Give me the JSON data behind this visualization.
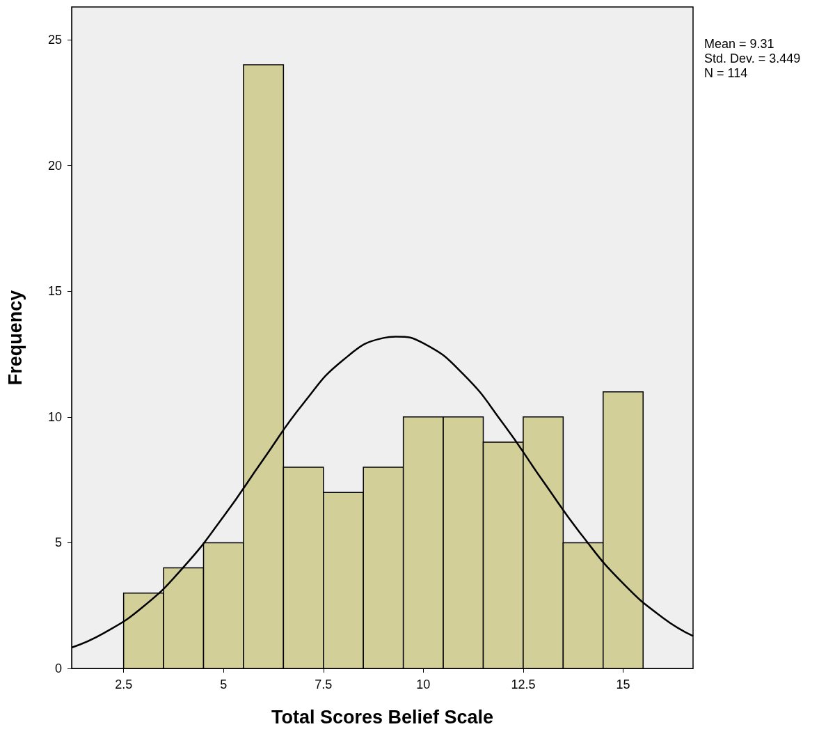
{
  "chart_data": {
    "type": "histogram",
    "xlabel": "Total Scores Belief Scale",
    "ylabel": "Frequency",
    "bins": [
      2.5,
      3.5,
      4.5,
      5.5,
      6.5,
      7.5,
      8.5,
      9.5,
      10.5,
      11.5,
      12.5,
      13.5,
      14.5,
      15.5
    ],
    "values": [
      3,
      4,
      5,
      24,
      8,
      7,
      8,
      10,
      10,
      9,
      10,
      5,
      11
    ],
    "color": "#d3cf98",
    "series": [
      {
        "type": "line",
        "color": "#000000",
        "x": [
          1.2,
          2,
          3,
          4,
          5,
          6,
          7,
          8,
          9,
          9.31,
          10,
          11,
          12,
          13,
          14,
          15,
          16,
          16.75
        ],
        "values": [
          0.83,
          1.4,
          2.47,
          4.03,
          6.04,
          8.32,
          10.54,
          12.27,
          13.14,
          13.19,
          12.93,
          11.7,
          9.73,
          7.44,
          5.23,
          3.38,
          2.01,
          1.29
        ]
      }
    ],
    "xlim": [
      1.2,
      16.75
    ],
    "ylim": [
      0,
      26.3
    ],
    "xticks": [
      2.5,
      5,
      7.5,
      10,
      12.5,
      15
    ],
    "yticks": [
      0,
      5,
      10,
      15,
      20,
      25
    ],
    "annotations": [
      "Mean = 9.31",
      "Std. Dev. = 3.449",
      "N = 114"
    ]
  }
}
